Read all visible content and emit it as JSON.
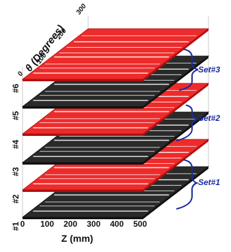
{
  "figure": {
    "theta_axis": {
      "label": "θ (Degrees)",
      "ticks": [
        "0",
        "100",
        "200",
        "300"
      ]
    },
    "z_axis": {
      "label": "Z (mm)",
      "ticks": [
        "0",
        "100",
        "200",
        "300",
        "400",
        "500"
      ]
    },
    "layers": [
      {
        "label": "#1",
        "color": "black"
      },
      {
        "label": "#2",
        "color": "red"
      },
      {
        "label": "#3",
        "color": "black"
      },
      {
        "label": "#4",
        "color": "red"
      },
      {
        "label": "#5",
        "color": "black"
      },
      {
        "label": "#6",
        "color": "red"
      }
    ],
    "sets": [
      {
        "label": "Set#1",
        "layers": [
          "#1",
          "#2"
        ]
      },
      {
        "label": "Set#2",
        "layers": [
          "#3",
          "#4"
        ]
      },
      {
        "label": "Set#3",
        "layers": [
          "#5",
          "#6"
        ]
      }
    ],
    "colors": {
      "red_layer": "#ee2b2b",
      "red_layer_dark": "#b01010",
      "black_layer": "#2a2a2a",
      "black_layer_dark": "#111111",
      "stripe": "#ffffff",
      "box_line": "#c8c8c8",
      "bracket": "#1a2a9a",
      "set_label": "#1a2aa0",
      "axis_text": "#111111"
    }
  }
}
